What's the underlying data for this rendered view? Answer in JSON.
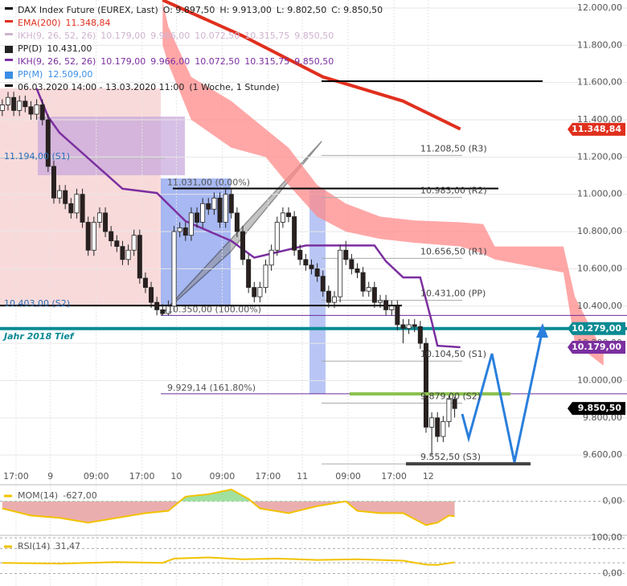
{
  "chart_data": {
    "type": "candlestick",
    "legend": [
      {
        "name": "DAX Index Future (EUREX, Last)",
        "values": [
          "O: 9.897,50",
          "H: 9.913,00",
          "L: 9.802,50",
          "C: 9.850,50"
        ],
        "color": "#000000"
      },
      {
        "name": "EMA(200)",
        "values": [
          "11.348,84"
        ],
        "color": "#e0301e"
      },
      {
        "name": "IKH(9, 26, 52, 26)",
        "values": [
          "10.179,00",
          "9.966,00",
          "10.072,50",
          "10.315,75",
          "9.850,50"
        ],
        "color": "#cfb3cf"
      },
      {
        "name": "PP(D)",
        "values": [
          "10.431,00"
        ],
        "color": "#222222"
      },
      {
        "name": "IKH(9, 26, 52, 26)",
        "values": [
          "10.179,00",
          "9.966,00",
          "10.072,50",
          "10.315,75",
          "9.850,50"
        ],
        "color": "#7b2fa0"
      },
      {
        "name": "PP(M)",
        "values": [
          "12.509,00"
        ],
        "color": "#3a8ee6"
      },
      {
        "name": "06.03.2020 14:00 - 13.03.2020 11:00",
        "values": [
          "(1 Woche, 1 Stunde)"
        ],
        "color": "#000000"
      }
    ],
    "xlim": [
      -0.4,
      109.1
    ],
    "xticks": [
      {
        "value": 2.4,
        "label": "17:00"
      },
      {
        "value": 8.4,
        "label": "9"
      },
      {
        "value": 16.4,
        "label": "09:00"
      },
      {
        "value": 24.4,
        "label": "17:00"
      },
      {
        "value": 30.4,
        "label": "10"
      },
      {
        "value": 38.4,
        "label": "09:00"
      },
      {
        "value": 46.4,
        "label": "17:00"
      },
      {
        "value": 52.4,
        "label": "11"
      },
      {
        "value": 60.4,
        "label": "09:00"
      },
      {
        "value": 68.4,
        "label": "17:00"
      },
      {
        "value": 74.4,
        "label": "12"
      }
    ],
    "ylim": [
      9454,
      12043
    ],
    "yticks": [
      {
        "value": 12000,
        "label": "12.000,00"
      },
      {
        "value": 11800,
        "label": "11.800,00"
      },
      {
        "value": 11600,
        "label": "11.600,00"
      },
      {
        "value": 11400,
        "label": "11.400,00"
      },
      {
        "value": 11200,
        "label": "11.200,00"
      },
      {
        "value": 11000,
        "label": "11.000,00"
      },
      {
        "value": 10800,
        "label": "10.800,00"
      },
      {
        "value": 10600,
        "label": "10.600,00"
      },
      {
        "value": 10400,
        "label": "10.400,00"
      },
      {
        "value": 10200,
        "label": "10.200,00"
      },
      {
        "value": 10000,
        "label": "10.000,00"
      },
      {
        "value": 9800,
        "label": "9.800,00"
      },
      {
        "value": 9600,
        "label": "9.600,00"
      }
    ],
    "grid": true,
    "x": [
      0,
      1,
      2,
      3,
      4,
      5,
      6,
      7,
      8,
      9,
      10,
      11,
      12,
      13,
      14,
      15,
      16,
      17,
      18,
      19,
      20,
      21,
      22,
      23,
      24,
      25,
      26,
      27,
      28,
      29,
      30,
      31,
      32,
      33,
      34,
      35,
      36,
      37,
      38,
      39,
      40,
      41,
      42,
      43,
      44,
      45,
      46,
      47,
      48,
      49,
      50,
      51,
      52,
      53,
      54,
      55,
      56,
      57,
      58,
      59,
      60,
      61,
      62,
      63,
      64,
      65,
      66,
      67,
      68,
      69,
      70,
      71,
      72,
      73,
      74,
      75,
      76,
      77,
      78,
      79
    ],
    "open": [
      11450,
      11480,
      11520,
      11450,
      11500,
      11470,
      11430,
      11480,
      11400,
      11150,
      10980,
      11020,
      10950,
      10900,
      11000,
      10850,
      10700,
      10850,
      10900,
      10800,
      10750,
      10720,
      10650,
      10700,
      10780,
      10550,
      10500,
      10420,
      10380,
      10360,
      10400,
      10800,
      10820,
      10780,
      10900,
      10850,
      10950,
      10920,
      10980,
      10850,
      11000,
      10900,
      10800,
      10650,
      10500,
      10450,
      10500,
      10620,
      10700,
      10850,
      10900,
      10880,
      10700,
      10650,
      10620,
      10600,
      10560,
      10480,
      10420,
      10450,
      10700,
      10650,
      10600,
      10580,
      10480,
      10500,
      10420,
      10430,
      10380,
      10400,
      10300,
      10280,
      10300,
      10290,
      10200,
      9750,
      9800,
      9700,
      9780,
      9900
    ],
    "high": [
      11510,
      11550,
      11550,
      11530,
      11530,
      11500,
      11510,
      11510,
      11430,
      11180,
      11050,
      11050,
      10980,
      11030,
      11030,
      10880,
      10880,
      10930,
      10930,
      10830,
      10780,
      10750,
      10730,
      10810,
      10810,
      10580,
      10530,
      10450,
      10410,
      10430,
      10830,
      10850,
      10850,
      10930,
      10930,
      10980,
      10980,
      11010,
      11010,
      11031,
      11030,
      10930,
      10830,
      10680,
      10530,
      10530,
      10650,
      10730,
      10880,
      10930,
      10930,
      10910,
      10730,
      10680,
      10650,
      10630,
      10590,
      10510,
      10480,
      10730,
      10750,
      10680,
      10630,
      10610,
      10530,
      10530,
      10460,
      10460,
      10430,
      10430,
      10330,
      10330,
      10330,
      10320,
      10230,
      9830,
      9830,
      9810,
      9930,
      9913
    ],
    "low": [
      11420,
      11450,
      11420,
      11420,
      11440,
      11400,
      11400,
      11370,
      11120,
      10950,
      10950,
      10920,
      10870,
      10870,
      10820,
      10670,
      10670,
      10820,
      10770,
      10720,
      10690,
      10620,
      10620,
      10670,
      10520,
      10470,
      10390,
      10350,
      10350,
      10350,
      10370,
      10770,
      10750,
      10750,
      10820,
      10820,
      10890,
      10890,
      10820,
      10820,
      10870,
      10770,
      10620,
      10470,
      10420,
      10420,
      10470,
      10590,
      10670,
      10820,
      10850,
      10670,
      10620,
      10590,
      10570,
      10530,
      10450,
      10390,
      10390,
      10420,
      10620,
      10570,
      10550,
      10450,
      10450,
      10390,
      10390,
      10350,
      10350,
      10270,
      10200,
      10250,
      10260,
      10170,
      9720,
      9600,
      9670,
      9670,
      9750,
      9802
    ],
    "close": [
      11480,
      11520,
      11450,
      11500,
      11470,
      11430,
      11480,
      11400,
      11150,
      10980,
      11020,
      10950,
      10900,
      11000,
      10850,
      10700,
      10850,
      10900,
      10800,
      10750,
      10720,
      10650,
      10700,
      10780,
      10550,
      10500,
      10420,
      10380,
      10360,
      10400,
      10800,
      10820,
      10780,
      10900,
      10850,
      10950,
      10920,
      10980,
      10850,
      11000,
      10900,
      10800,
      10650,
      10500,
      10450,
      10500,
      10620,
      10700,
      10850,
      10900,
      10880,
      10700,
      10650,
      10620,
      10600,
      10560,
      10480,
      10420,
      10450,
      10700,
      10650,
      10600,
      10580,
      10480,
      10500,
      10420,
      10430,
      10380,
      10400,
      10300,
      10280,
      10300,
      10290,
      10200,
      9750,
      9800,
      9700,
      9780,
      9900,
      9850
    ],
    "cloud": {
      "color": "#ff8a8a",
      "x": [
        28,
        29,
        33,
        40,
        46,
        50,
        55,
        60,
        66,
        72,
        80,
        84,
        86,
        98,
        100,
        105
      ],
      "upper": [
        12040,
        11900,
        11630,
        11500,
        11350,
        11250,
        11050,
        10950,
        10880,
        10860,
        10850,
        10840,
        10720,
        10720,
        10450,
        10150
      ],
      "lower": [
        11800,
        11700,
        11400,
        11250,
        11200,
        11050,
        10880,
        10800,
        10760,
        10740,
        10720,
        10680,
        10650,
        10580,
        10200,
        10080
      ]
    },
    "ema": {
      "color": "#e0301e",
      "x": [
        28,
        42,
        56,
        70,
        80
      ],
      "values": [
        12043,
        11850,
        11630,
        11500,
        11350
      ]
    },
    "ikh": {
      "color": "#7b2fa0",
      "x": [
        6,
        8,
        10,
        21,
        27,
        32,
        40,
        44,
        53,
        65,
        67,
        70,
        73,
        75,
        76,
        80
      ],
      "values": [
        11568,
        11417,
        11330,
        11030,
        11007,
        10856,
        10750,
        10660,
        10725,
        10725,
        10640,
        10554,
        10554,
        10316,
        10187,
        10179
      ]
    },
    "pivots": [
      {
        "value": 11208.5,
        "label": "11.208,50 (R3)"
      },
      {
        "value": 10983,
        "label": "10.983,00 (R2)"
      },
      {
        "value": 10656.5,
        "label": "10.656,50 (R1)"
      },
      {
        "value": 10431,
        "label": "10.431,00 (PP)"
      },
      {
        "value": 10104.5,
        "label": "10.104,50 (S1)"
      },
      {
        "value": 9879,
        "label": "9.879,00 (S2)"
      },
      {
        "value": 9552.5,
        "label": "9.552,50 (S3)"
      }
    ],
    "fibs": [
      {
        "value": 11031,
        "label": "11.031,00 (0.00%)"
      },
      {
        "value": 10350,
        "label": "10.350,00 (100.00%)"
      },
      {
        "value": 9929.14,
        "label": "9.929,14 (161.80%)"
      }
    ],
    "monthly": [
      {
        "value": 11194,
        "label": "11.194,00 (S1)"
      },
      {
        "value": 10403,
        "label": "10.403,00 (S2)"
      }
    ],
    "support": {
      "value": 10279,
      "label": "Jahr 2018 Tief",
      "color": "#0a8a94"
    },
    "tags": [
      {
        "value": 11348.84,
        "label": "11.348,84",
        "color": "#e0301e"
      },
      {
        "value": 10279,
        "label": "10.279,00",
        "color": "#0a8a94"
      },
      {
        "value": 10179,
        "label": "10.179,00",
        "color": "#7b2fa0"
      },
      {
        "value": 9850.5,
        "label": "9.850,50",
        "color": "#000000"
      }
    ],
    "mom": {
      "legend": "MOM(14)",
      "last": "-627,00",
      "color": "#f2c200",
      "ylim": [
        -1400,
        700
      ],
      "yticks": [
        {
          "value": 0,
          "label": "0,00"
        }
      ],
      "x": [
        0,
        5,
        10,
        15,
        20,
        25,
        29,
        32,
        36,
        40,
        43,
        45,
        50,
        55,
        60,
        62,
        66,
        70,
        74,
        76,
        78,
        79
      ],
      "values": [
        -300,
        -600,
        -700,
        -900,
        -700,
        -500,
        -400,
        200,
        300,
        500,
        100,
        -300,
        -500,
        -200,
        0,
        -400,
        -500,
        -500,
        -1000,
        -900,
        -600,
        -627
      ]
    },
    "rsi": {
      "legend": "RSI(14)",
      "last": "31,47",
      "color": "#f2c200",
      "ylim": [
        -34.9,
        107
      ],
      "yticks": [
        {
          "value": 100,
          "label": "100,00"
        },
        {
          "value": 0,
          "label": "0,00"
        }
      ],
      "dashed": [
        70,
        30
      ],
      "x": [
        0,
        10,
        20,
        28,
        30,
        36,
        42,
        48,
        55,
        62,
        70,
        74,
        76,
        79
      ],
      "values": [
        30,
        28,
        32,
        30,
        42,
        45,
        40,
        42,
        38,
        40,
        36,
        25,
        24,
        31.47
      ]
    }
  }
}
